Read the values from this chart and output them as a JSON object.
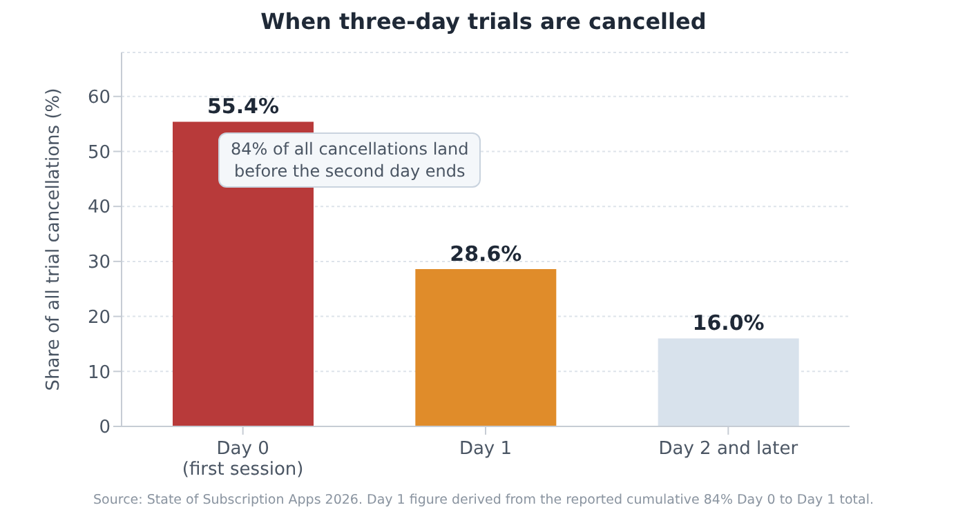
{
  "chart_data": {
    "type": "bar",
    "title": "When three-day trials are cancelled",
    "ylabel": "Share of all trial cancellations (%)",
    "categories": [
      "Day 0\n(first session)",
      "Day 1",
      "Day 2 and later"
    ],
    "values": [
      55.4,
      28.6,
      16.0
    ],
    "colors": [
      "#b83a3a",
      "#e08c2a",
      "#d8e2ec"
    ],
    "value_labels": [
      "55.4%",
      "28.6%",
      "16.0%"
    ],
    "ylim": [
      0,
      68
    ],
    "yticks": [
      0,
      10,
      20,
      30,
      40,
      50,
      60
    ],
    "grid": "y",
    "annotations": [
      "84% of all cancellations land\nbefore the second day ends",
      "Source: State of Subscription Apps 2026. Day 1 figure derived from the reported cumulative 84% Day 0 to Day 1 total."
    ]
  }
}
